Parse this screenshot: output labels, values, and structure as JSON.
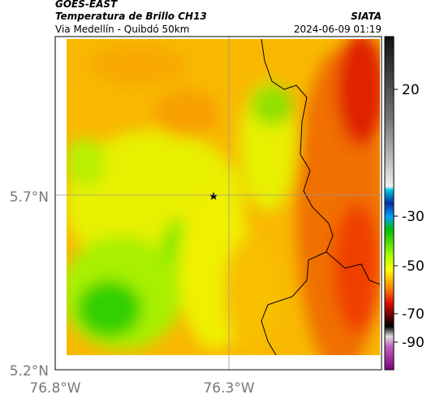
{
  "header": {
    "satellite": "GOES-EAST",
    "product": "Temperatura de Brillo CH13",
    "region": "Via Medellín - Quibdó 50km",
    "source": "SIATA",
    "datetime": "2024-06-09 01:19"
  },
  "map": {
    "lat_labels": [
      "5.7°N",
      "5.2°N"
    ],
    "lon_labels": [
      "76.8°W",
      "76.3°W"
    ]
  },
  "colorbar": {
    "ticks": [
      20,
      -30,
      -50,
      -70,
      -90
    ]
  }
}
